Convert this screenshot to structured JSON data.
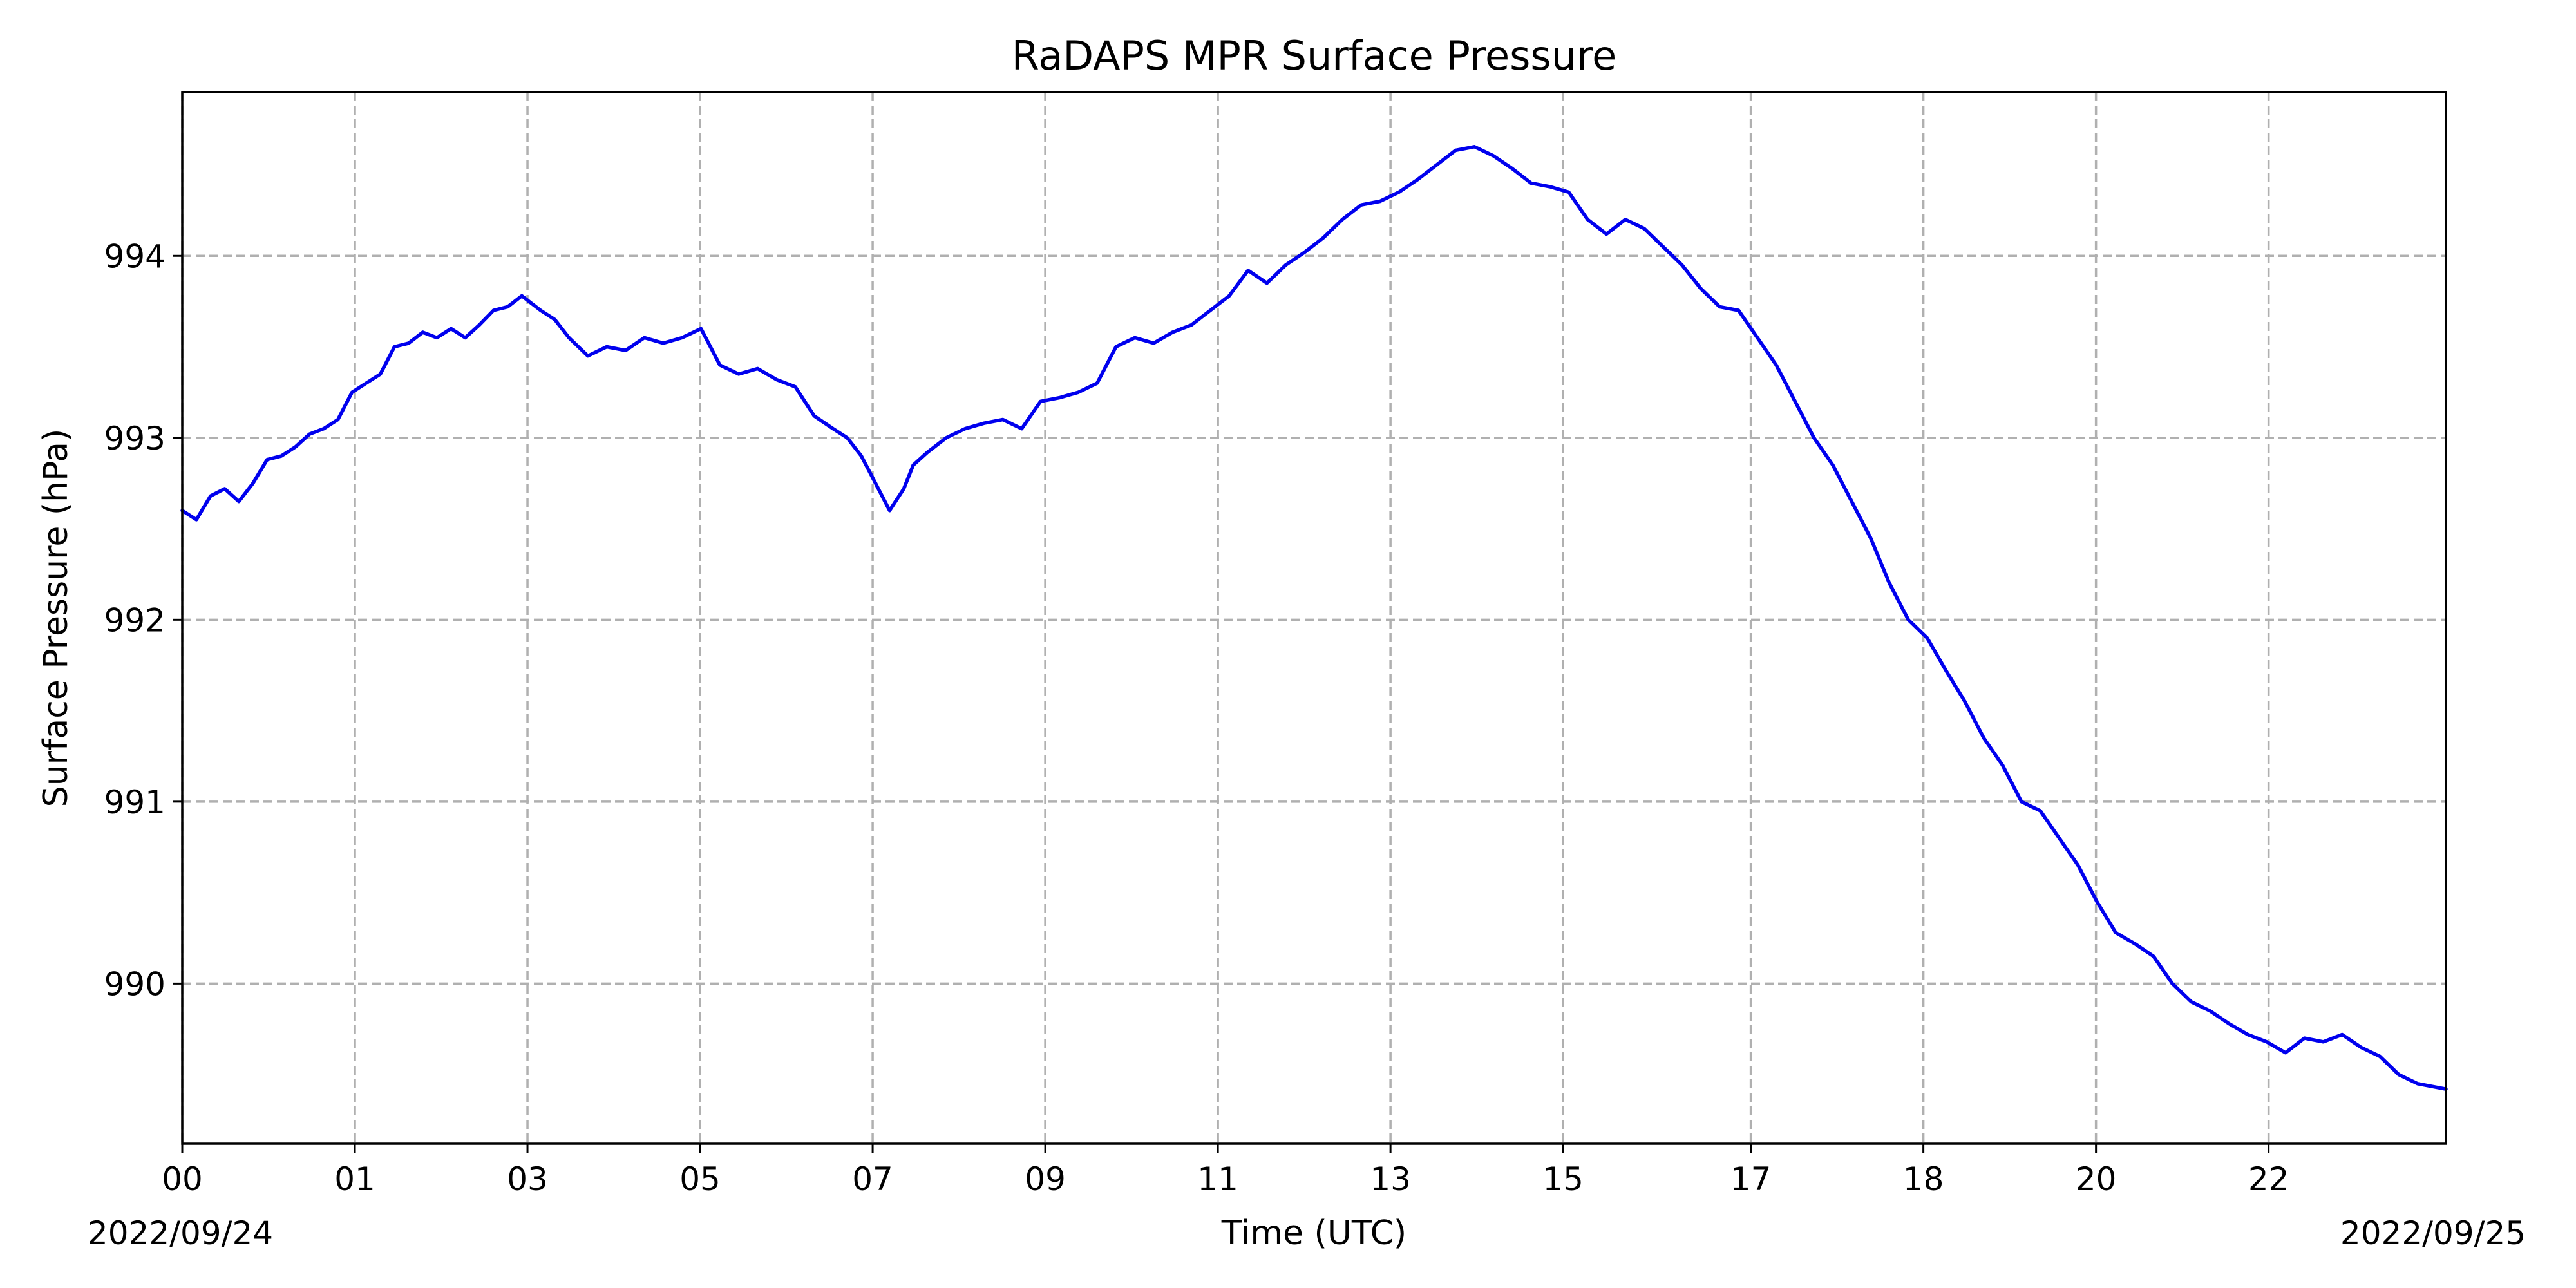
{
  "chart_data": {
    "type": "line",
    "title": "RaDAPS MPR Surface Pressure",
    "xlabel": "Time (UTC)",
    "ylabel": "Surface Pressure (hPa)",
    "x_unit": "hours UTC from 2022/09/24 00:00",
    "xlim": [
      0,
      24
    ],
    "ylim": [
      989.12,
      994.9
    ],
    "grid": true,
    "x_ticks": [
      {
        "value": 0,
        "label": "00"
      },
      {
        "value": 1.83,
        "label": "01"
      },
      {
        "value": 3.66,
        "label": "03"
      },
      {
        "value": 5.49,
        "label": "05"
      },
      {
        "value": 7.32,
        "label": "07"
      },
      {
        "value": 9.15,
        "label": "09"
      },
      {
        "value": 10.98,
        "label": "11"
      },
      {
        "value": 12.81,
        "label": "13"
      },
      {
        "value": 14.64,
        "label": "15"
      },
      {
        "value": 16.63,
        "label": "17"
      },
      {
        "value": 18.46,
        "label": "18"
      },
      {
        "value": 20.29,
        "label": "20"
      },
      {
        "value": 22.12,
        "label": "22"
      }
    ],
    "y_ticks": [
      {
        "value": 990,
        "label": "990"
      },
      {
        "value": 991,
        "label": "991"
      },
      {
        "value": 992,
        "label": "992"
      },
      {
        "value": 993,
        "label": "993"
      },
      {
        "value": 994,
        "label": "994"
      }
    ],
    "date_labels": {
      "start": "2022/09/24",
      "end": "2022/09/25"
    },
    "series": [
      {
        "color": "#0000ee",
        "x": [
          0,
          0.15,
          0.3,
          0.45,
          0.6,
          0.75,
          0.9,
          1.05,
          1.2,
          1.35,
          1.5,
          1.65,
          1.8,
          1.95,
          2.1,
          2.25,
          2.4,
          2.55,
          2.7,
          2.85,
          3.0,
          3.15,
          3.3,
          3.45,
          3.6,
          3.8,
          3.95,
          4.1,
          4.3,
          4.5,
          4.7,
          4.9,
          5.1,
          5.3,
          5.5,
          5.7,
          5.9,
          6.1,
          6.3,
          6.5,
          6.7,
          6.9,
          7.05,
          7.2,
          7.35,
          7.5,
          7.65,
          7.75,
          7.9,
          8.1,
          8.3,
          8.5,
          8.7,
          8.9,
          9.1,
          9.3,
          9.5,
          9.7,
          9.9,
          10.1,
          10.3,
          10.5,
          10.7,
          10.9,
          11.1,
          11.3,
          11.5,
          11.7,
          11.9,
          12.1,
          12.3,
          12.5,
          12.7,
          12.9,
          13.1,
          13.3,
          13.5,
          13.7,
          13.9,
          14.1,
          14.3,
          14.5,
          14.7,
          14.9,
          15.1,
          15.3,
          15.5,
          15.7,
          15.9,
          16.1,
          16.3,
          16.5,
          16.7,
          16.9,
          17.1,
          17.3,
          17.5,
          17.7,
          17.9,
          18.1,
          18.3,
          18.5,
          18.7,
          18.9,
          19.1,
          19.3,
          19.5,
          19.7,
          19.9,
          20.1,
          20.3,
          20.5,
          20.7,
          20.9,
          21.1,
          21.3,
          21.5,
          21.7,
          21.9,
          22.1,
          22.3,
          22.5,
          22.7,
          22.9,
          23.1,
          23.3,
          23.5,
          23.7,
          24.0
        ],
        "y": [
          992.6,
          992.55,
          992.68,
          992.72,
          992.65,
          992.75,
          992.88,
          992.9,
          992.95,
          993.02,
          993.05,
          993.1,
          993.25,
          993.3,
          993.35,
          993.5,
          993.52,
          993.58,
          993.55,
          993.6,
          993.55,
          993.62,
          993.7,
          993.72,
          993.78,
          993.7,
          993.65,
          993.55,
          993.45,
          993.5,
          993.48,
          993.55,
          993.52,
          993.55,
          993.6,
          993.4,
          993.35,
          993.38,
          993.32,
          993.28,
          993.12,
          993.05,
          993.0,
          992.9,
          992.75,
          992.6,
          992.72,
          992.85,
          992.92,
          993.0,
          993.05,
          993.08,
          993.1,
          993.05,
          993.2,
          993.22,
          993.25,
          993.3,
          993.5,
          993.55,
          993.52,
          993.58,
          993.62,
          993.7,
          993.78,
          993.92,
          993.85,
          993.95,
          994.02,
          994.1,
          994.2,
          994.28,
          994.3,
          994.35,
          994.42,
          994.5,
          994.58,
          994.6,
          994.55,
          994.48,
          994.4,
          994.38,
          994.35,
          994.2,
          994.12,
          994.2,
          994.15,
          994.05,
          993.95,
          993.82,
          993.72,
          993.7,
          993.55,
          993.4,
          993.2,
          993.0,
          992.85,
          992.65,
          992.45,
          992.2,
          992.0,
          991.9,
          991.72,
          991.55,
          991.35,
          991.2,
          991.0,
          990.95,
          990.8,
          990.65,
          990.45,
          990.28,
          990.22,
          990.15,
          990.0,
          989.9,
          989.85,
          989.78,
          989.72,
          989.68,
          989.62,
          989.7,
          989.68,
          989.72,
          989.65,
          989.6,
          989.5,
          989.45,
          989.42
        ]
      }
    ]
  }
}
